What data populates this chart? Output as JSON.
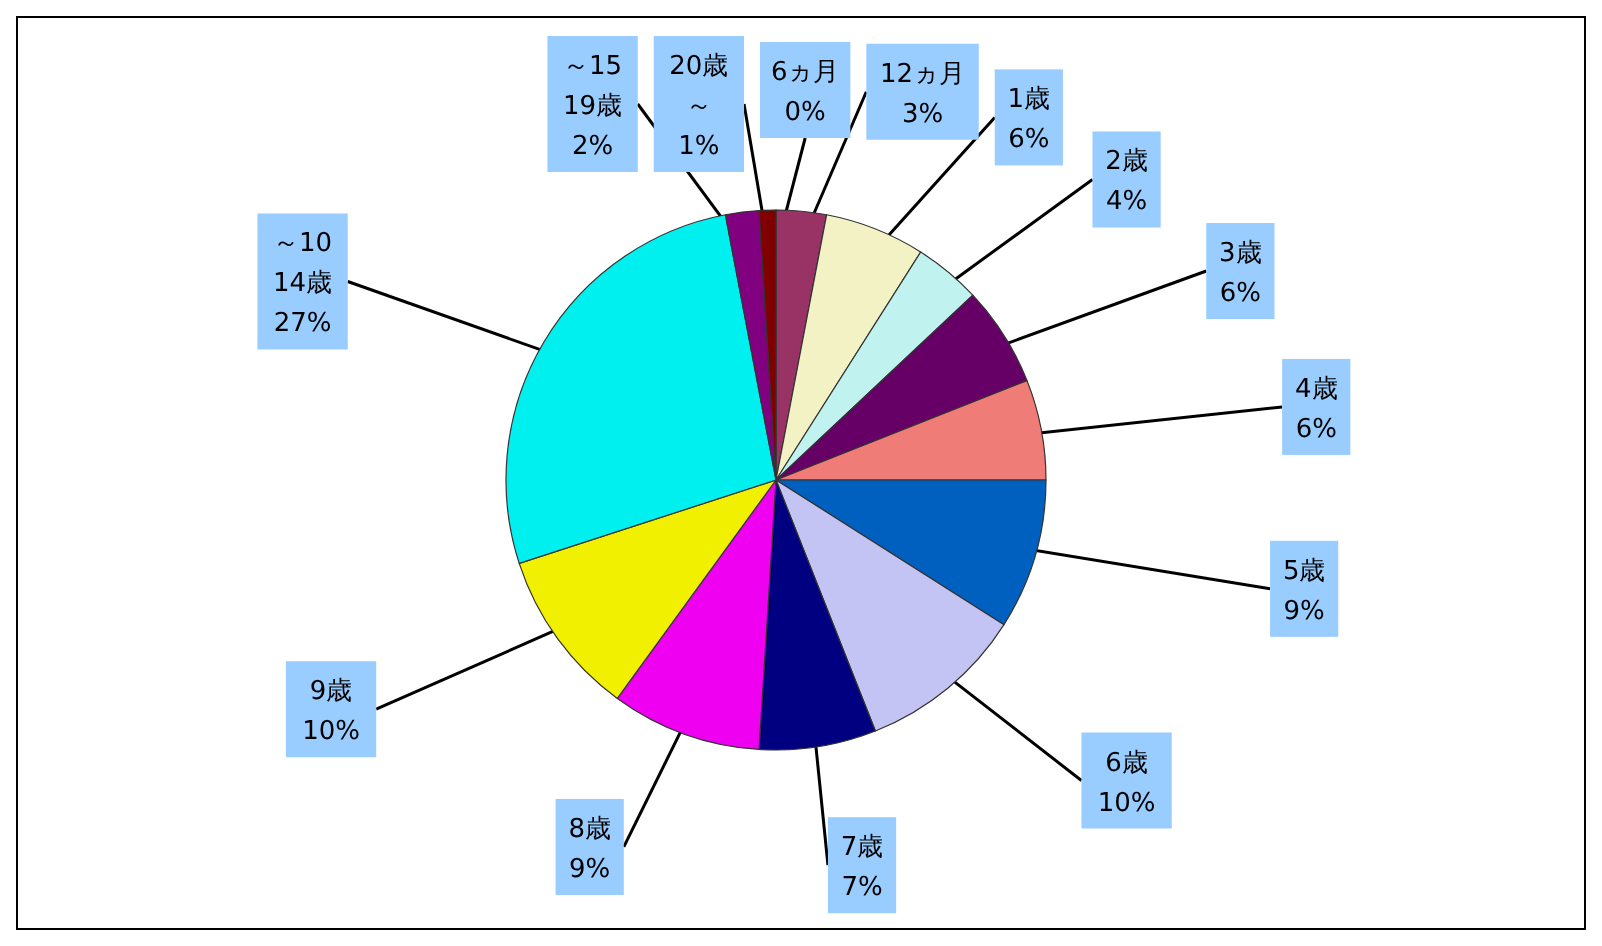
{
  "chart_data": {
    "type": "pie",
    "categories": [
      "6ヵ月",
      "12ヵ月",
      "1歳",
      "2歳",
      "3歳",
      "4歳",
      "5歳",
      "6歳",
      "7歳",
      "8歳",
      "9歳",
      "～10\n14歳",
      "～15\n19歳",
      "20歳～"
    ],
    "values": [
      0,
      3,
      6,
      4,
      6,
      6,
      9,
      10,
      7,
      9,
      10,
      27,
      2,
      1
    ],
    "value_labels": [
      "0%",
      "3%",
      "6%",
      "4%",
      "6%",
      "6%",
      "9%",
      "10%",
      "7%",
      "9%",
      "10%",
      "27%",
      "2%",
      "1%"
    ],
    "colors": [
      "#9999ff",
      "#993366",
      "#f2f2c4",
      "#c0f2f0",
      "#660066",
      "#f07c78",
      "#0060c0",
      "#c4c4f4",
      "#000080",
      "#f000f0",
      "#f0f000",
      "#00f0f0",
      "#800080",
      "#800000"
    ]
  }
}
